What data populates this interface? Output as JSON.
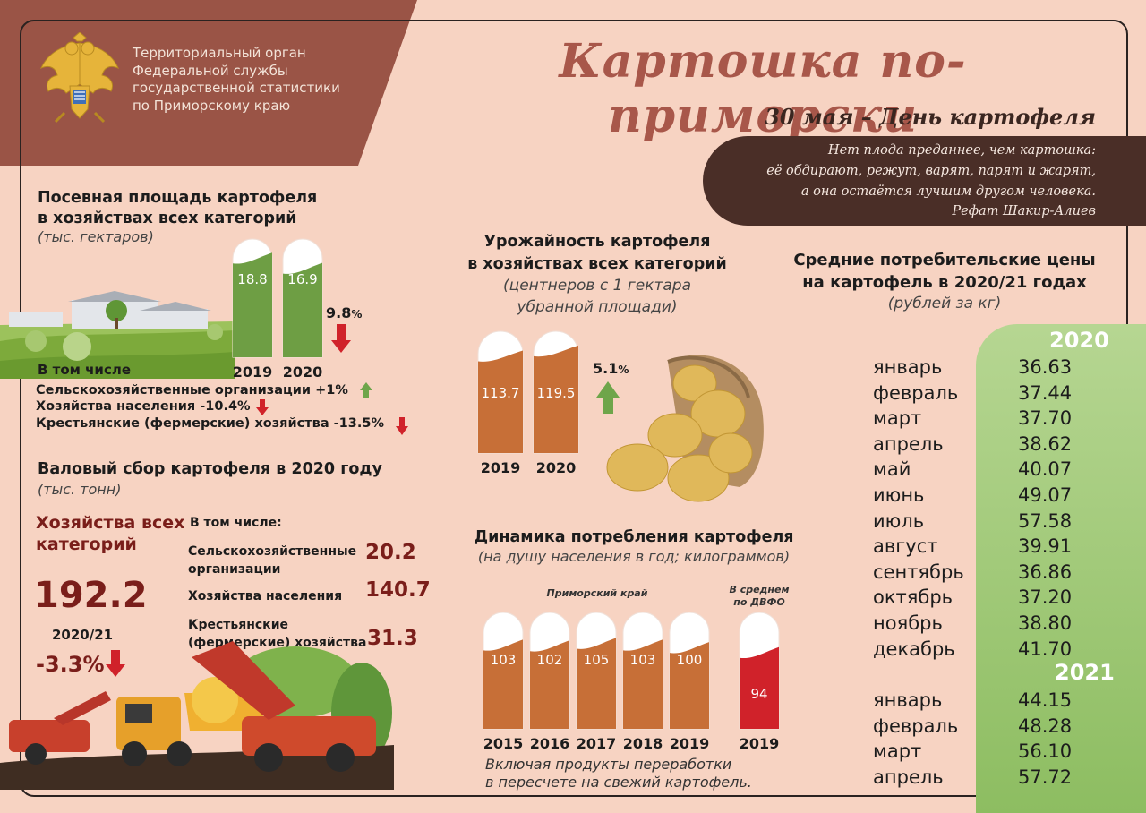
{
  "header": {
    "org_lines": [
      "Территориальный орган",
      "Федеральной службы",
      "государственной статистики",
      "по Приморскому краю"
    ],
    "title": "Картошка по-приморски",
    "subtitle": "30 мая – День картофеля",
    "quote_lines": [
      "Нет плода преданнее, чем картошка:",
      "её обдирают, режут, варят, парят и жарят,",
      "а она остаётся лучшим другом человека."
    ],
    "quote_author": "Рефат Шакир-Алиев"
  },
  "colors": {
    "brand": "#a8574a",
    "band": "#9a5446",
    "green": "#6e9e44",
    "orange": "#c76f37",
    "red": "#d0222a",
    "up": "#6ea54a"
  },
  "area": {
    "title_lines": [
      "Посевная площадь картофеля",
      "в хозяйствах всех категорий"
    ],
    "unit": "(тыс. гектаров)",
    "change": "9.8",
    "change_pct": "%",
    "incl_label": "В том числе",
    "breakdown": [
      {
        "text": "Сельскохозяйственные организации +1%",
        "dir": "up"
      },
      {
        "text": "Хозяйства населения -10.4%",
        "dir": "down"
      },
      {
        "text": "Крестьянские (фермерские) хозяйства -13.5%",
        "dir": "down"
      }
    ]
  },
  "harvest": {
    "title": "Валовый сбор картофеля в 2020 году",
    "unit": "(тыс. тонн)",
    "all_label_lines": [
      "Хозяйства всех",
      "категорий"
    ],
    "total": "192.2",
    "period": "2020/21",
    "change": "-3.3%",
    "incl_label": "В том числе:",
    "items": [
      {
        "label_lines": [
          "Сельскохозяйственные",
          "организации"
        ],
        "value": "20.2"
      },
      {
        "label_lines": [
          "Хозяйства населения"
        ],
        "value": "140.7"
      },
      {
        "label_lines": [
          "Крестьянские",
          "(фермерские)  хозяйства"
        ],
        "value": "31.3"
      }
    ]
  },
  "yield": {
    "title_lines": [
      "Урожайность картофеля",
      "в хозяйствах всех категорий"
    ],
    "unit_lines": [
      "(центнеров с 1 гектара",
      "убранной площади)"
    ],
    "change": "5.1",
    "change_pct": "%"
  },
  "consumption": {
    "title": "Динамика потребления картофеля",
    "unit": "(на душу населения в год; килограммов)",
    "region_label": "Приморский край",
    "dfo_label_lines": [
      "В среднем",
      "по ДВФО"
    ],
    "note_lines": [
      "Включая продукты переработки",
      "в пересчете на свежий картофель."
    ]
  },
  "prices": {
    "title_lines": [
      "Средние потребительские цены",
      "на картофель в 2020/21 годах"
    ],
    "unit": "(рублей за кг)",
    "years": [
      {
        "year": "2020",
        "rows": [
          {
            "month": "январь",
            "price": "36.63"
          },
          {
            "month": "февраль",
            "price": "37.44"
          },
          {
            "month": "март",
            "price": "37.70"
          },
          {
            "month": "апрель",
            "price": "38.62"
          },
          {
            "month": "май",
            "price": "40.07"
          },
          {
            "month": "июнь",
            "price": "49.07"
          },
          {
            "month": "июль",
            "price": "57.58"
          },
          {
            "month": "август",
            "price": "39.91"
          },
          {
            "month": "сентябрь",
            "price": "36.86"
          },
          {
            "month": "октябрь",
            "price": "37.20"
          },
          {
            "month": "ноябрь",
            "price": "38.80"
          },
          {
            "month": "декабрь",
            "price": "41.70"
          }
        ]
      },
      {
        "year": "2021",
        "rows": [
          {
            "month": "январь",
            "price": "44.15"
          },
          {
            "month": "февраль",
            "price": "48.28"
          },
          {
            "month": "март",
            "price": "56.10"
          },
          {
            "month": "апрель",
            "price": "57.72"
          }
        ]
      }
    ]
  },
  "chart_data": [
    {
      "type": "bar",
      "title": "Посевная площадь картофеля в хозяйствах всех категорий",
      "ylabel": "тыс. гектаров",
      "categories": [
        "2019",
        "2020"
      ],
      "values": [
        18.8,
        16.9
      ],
      "ylim": [
        0,
        22
      ]
    },
    {
      "type": "bar",
      "title": "Урожайность картофеля в хозяйствах всех категорий",
      "ylabel": "центнеров с 1 гектара убранной площади",
      "categories": [
        "2019",
        "2020"
      ],
      "values": [
        113.7,
        119.5
      ],
      "ylim": [
        0,
        140
      ]
    },
    {
      "type": "bar",
      "title": "Динамика потребления картофеля",
      "ylabel": "на душу населения в год; килограммов",
      "series": [
        {
          "name": "Приморский край",
          "categories": [
            "2015",
            "2016",
            "2017",
            "2018",
            "2019"
          ],
          "values": [
            103,
            102,
            105,
            103,
            100
          ]
        },
        {
          "name": "В среднем по ДВФО",
          "categories": [
            "2019"
          ],
          "values": [
            94
          ]
        }
      ],
      "ylim": [
        0,
        140
      ]
    },
    {
      "type": "table",
      "title": "Средние потребительские цены на картофель в 2020/21 годах",
      "ylabel": "рублей за кг",
      "categories": [
        "2020-01",
        "2020-02",
        "2020-03",
        "2020-04",
        "2020-05",
        "2020-06",
        "2020-07",
        "2020-08",
        "2020-09",
        "2020-10",
        "2020-11",
        "2020-12",
        "2021-01",
        "2021-02",
        "2021-03",
        "2021-04"
      ],
      "values": [
        36.63,
        37.44,
        37.7,
        38.62,
        40.07,
        49.07,
        57.58,
        39.91,
        36.86,
        37.2,
        38.8,
        41.7,
        44.15,
        48.28,
        56.1,
        57.72
      ]
    }
  ]
}
